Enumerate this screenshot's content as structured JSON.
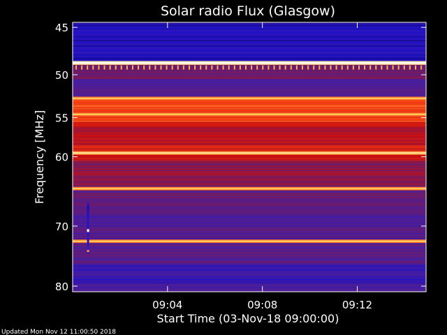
{
  "chart_data": {
    "type": "heatmap",
    "title": "Solar radio Flux (Glasgow)",
    "xlabel": "Start Time (03-Nov-18 09:00:00)",
    "ylabel": "Frequency [MHz]",
    "y_ticks": [
      "45",
      "50",
      "55",
      "60",
      "70",
      "80"
    ],
    "x_ticks": [
      "09:04",
      "09:08",
      "09:12"
    ],
    "footer": "Updated Mon Nov 12 11:00:50 2018",
    "y_axis": {
      "scale": "log",
      "range_mhz": [
        44.5,
        81
      ],
      "inverted": true
    },
    "x_axis": {
      "range_minutes": [
        0,
        14.9
      ]
    },
    "colormap": [
      "#000000",
      "#1e10c8",
      "#4a1e9a",
      "#7a1a5a",
      "#c81010",
      "#ff4a14",
      "#ffd060",
      "#ffffff"
    ],
    "frequency_bands": [
      {
        "from_mhz": 44.5,
        "to_mhz": 48.5,
        "level": 0.15
      },
      {
        "from_mhz": 48.5,
        "to_mhz": 48.9,
        "level": 1.0
      },
      {
        "from_mhz": 48.9,
        "to_mhz": 50.5,
        "level": 0.4
      },
      {
        "from_mhz": 50.5,
        "to_mhz": 52.5,
        "level": 0.3
      },
      {
        "from_mhz": 52.5,
        "to_mhz": 55.5,
        "level": 0.7
      },
      {
        "from_mhz": 55.5,
        "to_mhz": 58.5,
        "level": 0.55
      },
      {
        "from_mhz": 58.5,
        "to_mhz": 60.5,
        "level": 0.6
      },
      {
        "from_mhz": 60.5,
        "to_mhz": 64.0,
        "level": 0.45
      },
      {
        "from_mhz": 64.0,
        "to_mhz": 68.0,
        "level": 0.35
      },
      {
        "from_mhz": 68.0,
        "to_mhz": 72.0,
        "level": 0.3
      },
      {
        "from_mhz": 72.0,
        "to_mhz": 76.0,
        "level": 0.33
      },
      {
        "from_mhz": 76.0,
        "to_mhz": 81.0,
        "level": 0.25
      }
    ],
    "bright_lines_mhz": [
      {
        "freq": 48.7,
        "level": 1.0
      },
      {
        "freq": 52.7,
        "level": 0.85
      },
      {
        "freq": 54.6,
        "level": 0.85
      },
      {
        "freq": 59.5,
        "level": 0.9
      },
      {
        "freq": 64.4,
        "level": 0.85
      },
      {
        "freq": 72.4,
        "level": 0.85
      }
    ],
    "spike_row_mhz": 49.2,
    "burst": {
      "time_min": 0.65,
      "from_mhz": 66.5,
      "to_mhz": 74.2
    }
  }
}
